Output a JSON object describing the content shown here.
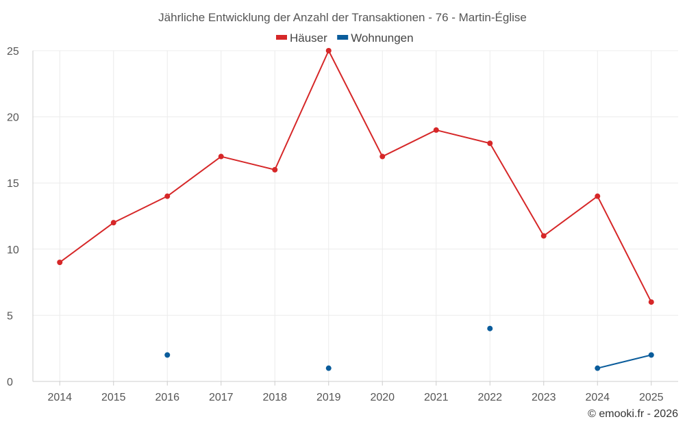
{
  "chart_data": {
    "type": "line",
    "title": "Jährliche Entwicklung der Anzahl der Transaktionen - 76 - Martin-Église",
    "categories": [
      "2014",
      "2015",
      "2016",
      "2017",
      "2018",
      "2019",
      "2020",
      "2021",
      "2022",
      "2023",
      "2024",
      "2025"
    ],
    "ylim": [
      0,
      25
    ],
    "yticks": [
      0,
      5,
      10,
      15,
      20,
      25
    ],
    "grid": true,
    "legend_position": "top-center",
    "series": [
      {
        "name": "Häuser",
        "color": "#d62728",
        "values": [
          9,
          12,
          14,
          17,
          16,
          25,
          17,
          19,
          18,
          11,
          14,
          6
        ]
      },
      {
        "name": "Wohnungen",
        "color": "#0a5c9b",
        "values": [
          null,
          null,
          2,
          null,
          null,
          1,
          null,
          null,
          4,
          null,
          1,
          2
        ]
      }
    ]
  },
  "credit": "© emooki.fr - 2026"
}
